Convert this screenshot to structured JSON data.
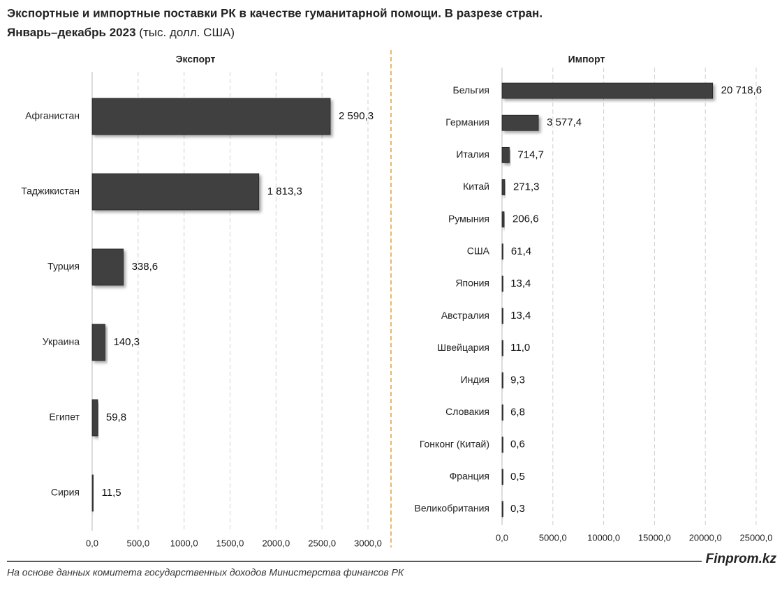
{
  "title": "Экспортные и импортные поставки РК в качестве гуманитарной помощи. В разрезе стран.",
  "period": "Январь–декабрь 2023",
  "unit": "(тыс. долл. США)",
  "source": "На основе данных комитета государственных доходов Министерства финансов РК",
  "brand": "Finprom.kz",
  "chart_data": [
    {
      "type": "hbar",
      "title": "Экспорт",
      "color": "#404040",
      "grid": true,
      "categories": [
        "Афганистан",
        "Таджикистан",
        "Турция",
        "Украина",
        "Египет",
        "Сирия"
      ],
      "values": [
        2590.3,
        1813.3,
        338.6,
        140.3,
        59.8,
        11.5
      ],
      "value_labels": [
        "2 590,3",
        "1 813,3",
        "338,6",
        "140,3",
        "59,8",
        "11,5"
      ],
      "xlim": [
        0,
        3000
      ],
      "xticks": [
        {
          "value": 0,
          "label": "0,0"
        },
        {
          "value": 500,
          "label": "500,0"
        },
        {
          "value": 1000,
          "label": "1000,0"
        },
        {
          "value": 1500,
          "label": "1500,0"
        },
        {
          "value": 2000,
          "label": "2000,0"
        },
        {
          "value": 2500,
          "label": "2500,0"
        },
        {
          "value": 3000,
          "label": "3000,0"
        }
      ]
    },
    {
      "type": "hbar",
      "title": "Импорт",
      "color": "#404040",
      "grid": true,
      "categories": [
        "Бельгия",
        "Германия",
        "Италия",
        "Китай",
        "Румыния",
        "США",
        "Япония",
        "Австралия",
        "Швейцария",
        "Индия",
        "Словакия",
        "Гонконг (Китай)",
        "Франция",
        "Великобритания"
      ],
      "values": [
        20718.6,
        3577.4,
        714.7,
        271.3,
        206.6,
        61.4,
        13.4,
        13.4,
        11.0,
        9.3,
        6.8,
        0.6,
        0.5,
        0.3
      ],
      "value_labels": [
        "20 718,6",
        "3 577,4",
        "714,7",
        "271,3",
        "206,6",
        "61,4",
        "13,4",
        "13,4",
        "11,0",
        "9,3",
        "6,8",
        "0,6",
        "0,5",
        "0,3"
      ],
      "xlim": [
        0,
        25000
      ],
      "xticks": [
        {
          "value": 0,
          "label": "0,0"
        },
        {
          "value": 5000,
          "label": "5000,0"
        },
        {
          "value": 10000,
          "label": "10000,0"
        },
        {
          "value": 15000,
          "label": "15000,0"
        },
        {
          "value": 20000,
          "label": "20000,0"
        },
        {
          "value": 25000,
          "label": "25000,0"
        }
      ]
    }
  ]
}
